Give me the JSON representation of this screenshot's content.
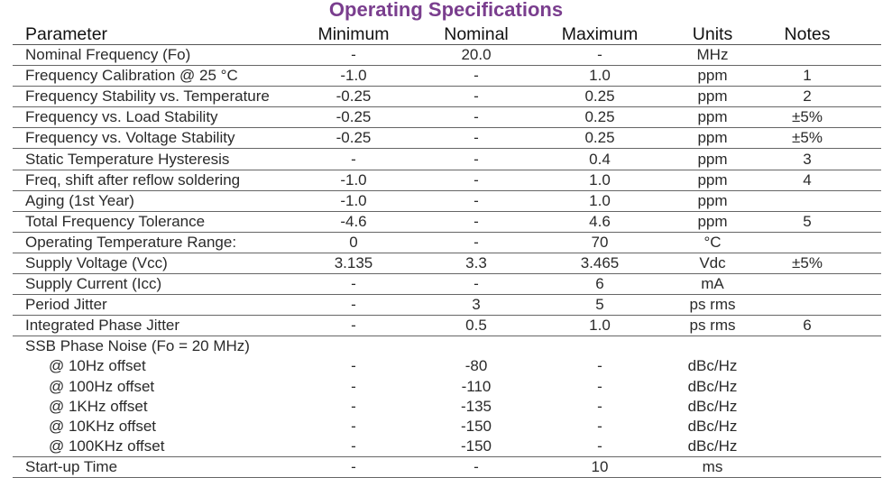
{
  "title": "Operating Specifications",
  "columns": [
    "Parameter",
    "Minimum",
    "Nominal",
    "Maximum",
    "Units",
    "Notes"
  ],
  "rows": [
    {
      "parameter": "Nominal Frequency (Fo)",
      "min": "-",
      "nom": "20.0",
      "max": "-",
      "units": "MHz",
      "notes": ""
    },
    {
      "parameter": "Frequency Calibration @ 25 °C",
      "min": "-1.0",
      "nom": "-",
      "max": "1.0",
      "units": "ppm",
      "notes": "1"
    },
    {
      "parameter": "Frequency Stability vs. Temperature",
      "min": "-0.25",
      "nom": "-",
      "max": "0.25",
      "units": "ppm",
      "notes": "2"
    },
    {
      "parameter": "Frequency vs. Load Stability",
      "min": "-0.25",
      "nom": "-",
      "max": "0.25",
      "units": "ppm",
      "notes": "±5%"
    },
    {
      "parameter": "Frequency vs. Voltage Stability",
      "min": "-0.25",
      "nom": "-",
      "max": "0.25",
      "units": "ppm",
      "notes": "±5%"
    },
    {
      "parameter": "Static Temperature Hysteresis",
      "min": "-",
      "nom": "-",
      "max": "0.4",
      "units": "ppm",
      "notes": "3"
    },
    {
      "parameter": "Freq, shift after reflow soldering",
      "min": "-1.0",
      "nom": "-",
      "max": "1.0",
      "units": "ppm",
      "notes": "4"
    },
    {
      "parameter": "Aging (1st Year)",
      "min": "-1.0",
      "nom": "-",
      "max": "1.0",
      "units": "ppm",
      "notes": ""
    },
    {
      "parameter": "Total Frequency Tolerance",
      "min": "-4.6",
      "nom": "-",
      "max": "4.6",
      "units": "ppm",
      "notes": "5"
    },
    {
      "parameter": "Operating Temperature Range:",
      "min": "0",
      "nom": "-",
      "max": "70",
      "units": "°C",
      "notes": ""
    },
    {
      "parameter": "Supply Voltage (Vcc)",
      "min": "3.135",
      "nom": "3.3",
      "max": "3.465",
      "units": "Vdc",
      "notes": "±5%"
    },
    {
      "parameter": "Supply Current (Icc)",
      "min": "-",
      "nom": "-",
      "max": "6",
      "units": "mA",
      "notes": ""
    },
    {
      "parameter": "Period Jitter",
      "min": "-",
      "nom": "3",
      "max": "5",
      "units": "ps rms",
      "notes": ""
    },
    {
      "parameter": "Integrated Phase Jitter",
      "min": "-",
      "nom": "0.5",
      "max": "1.0",
      "units": "ps rms",
      "notes": "6"
    },
    {
      "parameter": "SSB Phase Noise (Fo = 20 MHz)",
      "min": "",
      "nom": "",
      "max": "",
      "units": "",
      "notes": ""
    },
    {
      "parameter": "@ 10Hz offset",
      "min": "-",
      "nom": "-80",
      "max": "-",
      "units": "dBc/Hz",
      "notes": ""
    },
    {
      "parameter": "@ 100Hz offset",
      "min": "-",
      "nom": "-110",
      "max": "-",
      "units": "dBc/Hz",
      "notes": ""
    },
    {
      "parameter": "@ 1KHz offset",
      "min": "-",
      "nom": "-135",
      "max": "-",
      "units": "dBc/Hz",
      "notes": ""
    },
    {
      "parameter": "@ 10KHz offset",
      "min": "-",
      "nom": "-150",
      "max": "-",
      "units": "dBc/Hz",
      "notes": ""
    },
    {
      "parameter": "@ 100KHz offset",
      "min": "-",
      "nom": "-150",
      "max": "-",
      "units": "dBc/Hz",
      "notes": ""
    },
    {
      "parameter": "Start-up Time",
      "min": "-",
      "nom": "-",
      "max": "10",
      "units": "ms",
      "notes": ""
    }
  ]
}
